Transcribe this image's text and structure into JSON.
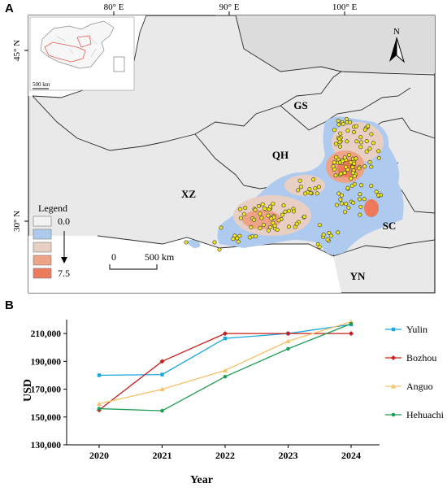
{
  "panel_a": {
    "letter": "A",
    "graticule": {
      "lon_labels": [
        "80° E",
        "90° E",
        "100° E"
      ],
      "lat_labels": [
        "45° N",
        "30° N"
      ]
    },
    "inset_scale": "500 km",
    "north_arrow": "N",
    "regions": [
      "GS",
      "QH",
      "XZ",
      "SC",
      "YN"
    ],
    "legend": {
      "title": "Legend",
      "min": "0.0",
      "max": "7.5",
      "colors": [
        "#f2f2f2",
        "#aecbef",
        "#e8cfc4",
        "#eea286",
        "#ec7a5b"
      ]
    },
    "scale_bar": {
      "zero": "0",
      "label": "500 km"
    },
    "colors": {
      "land": "#e9e9e9",
      "border": "#2b2b2b",
      "point": "#f2e817",
      "point_stroke": "#333333"
    }
  },
  "panel_b": {
    "letter": "B",
    "chart_data": {
      "type": "line",
      "x": [
        "2020",
        "2021",
        "2022",
        "2023",
        "2024"
      ],
      "xlabel": "Year",
      "ylabel": "USD",
      "ylim": [
        130000,
        220000
      ],
      "yticks": [
        "130,000",
        "150,000",
        "170,000",
        "190,000",
        "210,000"
      ],
      "ytick_values": [
        130000,
        150000,
        170000,
        190000,
        210000
      ],
      "grid": false,
      "legend_position": "right",
      "series": [
        {
          "name": "Yulin",
          "color": "#1aa7dd",
          "marker": "square",
          "values": [
            180000,
            180500,
            206500,
            210000,
            216500
          ]
        },
        {
          "name": "Bozhou",
          "color": "#c81d1d",
          "marker": "diamond",
          "values": [
            155000,
            190000,
            210000,
            210000,
            210000
          ]
        },
        {
          "name": "Anguo",
          "color": "#f5c26a",
          "marker": "triangle",
          "values": [
            159500,
            170000,
            183500,
            204500,
            218500
          ]
        },
        {
          "name": "Hehuachi",
          "color": "#1f9d55",
          "marker": "circle",
          "values": [
            156000,
            154500,
            179000,
            199000,
            217000
          ]
        }
      ]
    }
  }
}
